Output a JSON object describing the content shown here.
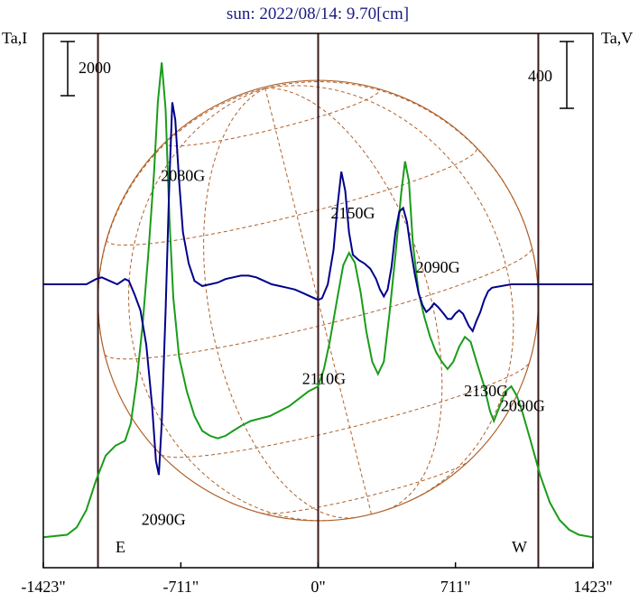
{
  "chart_data": {
    "type": "line",
    "title": "sun: 2022/08/14: 9.70[cm]",
    "left_axis_label": "Ta,I",
    "right_axis_label": "Ta,V",
    "left_scale_bar": "2000",
    "right_scale_bar": "400",
    "x_range_arcsec": [
      -1423,
      1423
    ],
    "x_tick_labels": [
      {
        "value": -1423,
        "label": "-1423\""
      },
      {
        "value": -711,
        "label": "-711\""
      },
      {
        "value": 0,
        "label": "0\""
      },
      {
        "value": 711,
        "label": "711\""
      },
      {
        "value": 1423,
        "label": "1423\""
      }
    ],
    "vertical_lines_arcsec": [
      -1140,
      0,
      1140
    ],
    "limb_labels": {
      "east": "E",
      "west": "W"
    },
    "solar_disk_radius_arcsec": 1140,
    "grid": false,
    "colors": {
      "stokes_I": "#1a9c1a",
      "stokes_V": "#00008b",
      "disk_grid": "#b0602a",
      "frame": "#000000",
      "title": "#1a1a80"
    },
    "series": [
      {
        "key": "I",
        "points": [
          [
            -1423,
            0.01
          ],
          [
            -1300,
            0.02
          ],
          [
            -1250,
            0.05
          ],
          [
            -1200,
            0.12
          ],
          [
            -1150,
            0.24
          ],
          [
            -1100,
            0.34
          ],
          [
            -1050,
            0.38
          ],
          [
            -1000,
            0.4
          ],
          [
            -970,
            0.47
          ],
          [
            -940,
            0.64
          ],
          [
            -910,
            0.86
          ],
          [
            -880,
            1.15
          ],
          [
            -850,
            1.48
          ],
          [
            -830,
            1.77
          ],
          [
            -810,
            1.93
          ],
          [
            -790,
            1.74
          ],
          [
            -770,
            1.3
          ],
          [
            -750,
            0.98
          ],
          [
            -720,
            0.74
          ],
          [
            -680,
            0.6
          ],
          [
            -640,
            0.5
          ],
          [
            -600,
            0.44
          ],
          [
            -560,
            0.42
          ],
          [
            -520,
            0.41
          ],
          [
            -480,
            0.42
          ],
          [
            -440,
            0.44
          ],
          [
            -400,
            0.46
          ],
          [
            -350,
            0.48
          ],
          [
            -300,
            0.49
          ],
          [
            -250,
            0.5
          ],
          [
            -200,
            0.52
          ],
          [
            -150,
            0.54
          ],
          [
            -100,
            0.57
          ],
          [
            -50,
            0.6
          ],
          [
            0,
            0.62
          ],
          [
            30,
            0.69
          ],
          [
            60,
            0.8
          ],
          [
            100,
            0.98
          ],
          [
            130,
            1.11
          ],
          [
            160,
            1.16
          ],
          [
            190,
            1.12
          ],
          [
            220,
            1.0
          ],
          [
            250,
            0.84
          ],
          [
            280,
            0.72
          ],
          [
            310,
            0.67
          ],
          [
            340,
            0.72
          ],
          [
            370,
            0.92
          ],
          [
            400,
            1.15
          ],
          [
            430,
            1.4
          ],
          [
            450,
            1.53
          ],
          [
            470,
            1.45
          ],
          [
            490,
            1.2
          ],
          [
            520,
            1.0
          ],
          [
            550,
            0.9
          ],
          [
            580,
            0.82
          ],
          [
            610,
            0.76
          ],
          [
            640,
            0.72
          ],
          [
            670,
            0.69
          ],
          [
            700,
            0.72
          ],
          [
            730,
            0.78
          ],
          [
            760,
            0.82
          ],
          [
            790,
            0.8
          ],
          [
            820,
            0.72
          ],
          [
            860,
            0.62
          ],
          [
            890,
            0.52
          ],
          [
            910,
            0.48
          ],
          [
            930,
            0.52
          ],
          [
            970,
            0.6
          ],
          [
            1000,
            0.62
          ],
          [
            1030,
            0.58
          ],
          [
            1060,
            0.51
          ],
          [
            1100,
            0.4
          ],
          [
            1150,
            0.26
          ],
          [
            1200,
            0.15
          ],
          [
            1250,
            0.08
          ],
          [
            1300,
            0.04
          ],
          [
            1350,
            0.02
          ],
          [
            1423,
            0.01
          ]
        ]
      },
      {
        "key": "V",
        "points": [
          [
            -1423,
            0.0
          ],
          [
            -1300,
            0.0
          ],
          [
            -1200,
            0.0
          ],
          [
            -1150,
            0.03
          ],
          [
            -1120,
            0.04
          ],
          [
            -1080,
            0.02
          ],
          [
            -1040,
            0.0
          ],
          [
            -1000,
            0.03
          ],
          [
            -980,
            0.02
          ],
          [
            -950,
            -0.06
          ],
          [
            -920,
            -0.15
          ],
          [
            -890,
            -0.35
          ],
          [
            -860,
            -0.7
          ],
          [
            -840,
            -1.02
          ],
          [
            -825,
            -1.1
          ],
          [
            -810,
            -0.8
          ],
          [
            -790,
            -0.15
          ],
          [
            -770,
            0.6
          ],
          [
            -755,
            1.05
          ],
          [
            -740,
            0.95
          ],
          [
            -720,
            0.6
          ],
          [
            -700,
            0.3
          ],
          [
            -670,
            0.12
          ],
          [
            -640,
            0.02
          ],
          [
            -600,
            -0.01
          ],
          [
            -560,
            0.0
          ],
          [
            -520,
            0.01
          ],
          [
            -480,
            0.03
          ],
          [
            -440,
            0.04
          ],
          [
            -400,
            0.05
          ],
          [
            -360,
            0.05
          ],
          [
            -320,
            0.04
          ],
          [
            -280,
            0.02
          ],
          [
            -240,
            0.0
          ],
          [
            -200,
            -0.01
          ],
          [
            -160,
            -0.02
          ],
          [
            -120,
            -0.03
          ],
          [
            -80,
            -0.05
          ],
          [
            -40,
            -0.07
          ],
          [
            0,
            -0.09
          ],
          [
            20,
            -0.08
          ],
          [
            50,
            0.0
          ],
          [
            80,
            0.2
          ],
          [
            100,
            0.45
          ],
          [
            120,
            0.65
          ],
          [
            140,
            0.54
          ],
          [
            160,
            0.3
          ],
          [
            180,
            0.17
          ],
          [
            210,
            0.14
          ],
          [
            240,
            0.12
          ],
          [
            270,
            0.09
          ],
          [
            300,
            0.03
          ],
          [
            320,
            -0.03
          ],
          [
            340,
            -0.07
          ],
          [
            360,
            -0.03
          ],
          [
            380,
            0.1
          ],
          [
            400,
            0.3
          ],
          [
            420,
            0.42
          ],
          [
            440,
            0.44
          ],
          [
            460,
            0.36
          ],
          [
            480,
            0.2
          ],
          [
            500,
            0.06
          ],
          [
            520,
            -0.05
          ],
          [
            540,
            -0.12
          ],
          [
            560,
            -0.16
          ],
          [
            580,
            -0.14
          ],
          [
            600,
            -0.11
          ],
          [
            620,
            -0.13
          ],
          [
            650,
            -0.17
          ],
          [
            670,
            -0.2
          ],
          [
            690,
            -0.2
          ],
          [
            710,
            -0.17
          ],
          [
            730,
            -0.15
          ],
          [
            750,
            -0.17
          ],
          [
            780,
            -0.24
          ],
          [
            800,
            -0.27
          ],
          [
            820,
            -0.21
          ],
          [
            840,
            -0.16
          ],
          [
            860,
            -0.09
          ],
          [
            880,
            -0.04
          ],
          [
            900,
            -0.02
          ],
          [
            1000,
            0.0
          ],
          [
            1100,
            0.0
          ],
          [
            1200,
            0.0
          ],
          [
            1300,
            0.0
          ],
          [
            1423,
            0.0
          ]
        ]
      }
    ],
    "annotations": [
      {
        "text": "2080G",
        "x": -700,
        "y": 1.45,
        "series": "I"
      },
      {
        "text": "2150G",
        "x": 180,
        "y": 1.3,
        "series": "I"
      },
      {
        "text": "2090G",
        "x": 620,
        "y": 1.08,
        "series": "I"
      },
      {
        "text": "2110G",
        "x": 30,
        "y": 0.63,
        "series": "I"
      },
      {
        "text": "2130G",
        "x": 870,
        "y": 0.58,
        "series": "I"
      },
      {
        "text": "2090G",
        "x": 1060,
        "y": 0.52,
        "series": "I"
      },
      {
        "text": "2090G",
        "x": -800,
        "y": 0.06,
        "series": "I"
      }
    ]
  }
}
